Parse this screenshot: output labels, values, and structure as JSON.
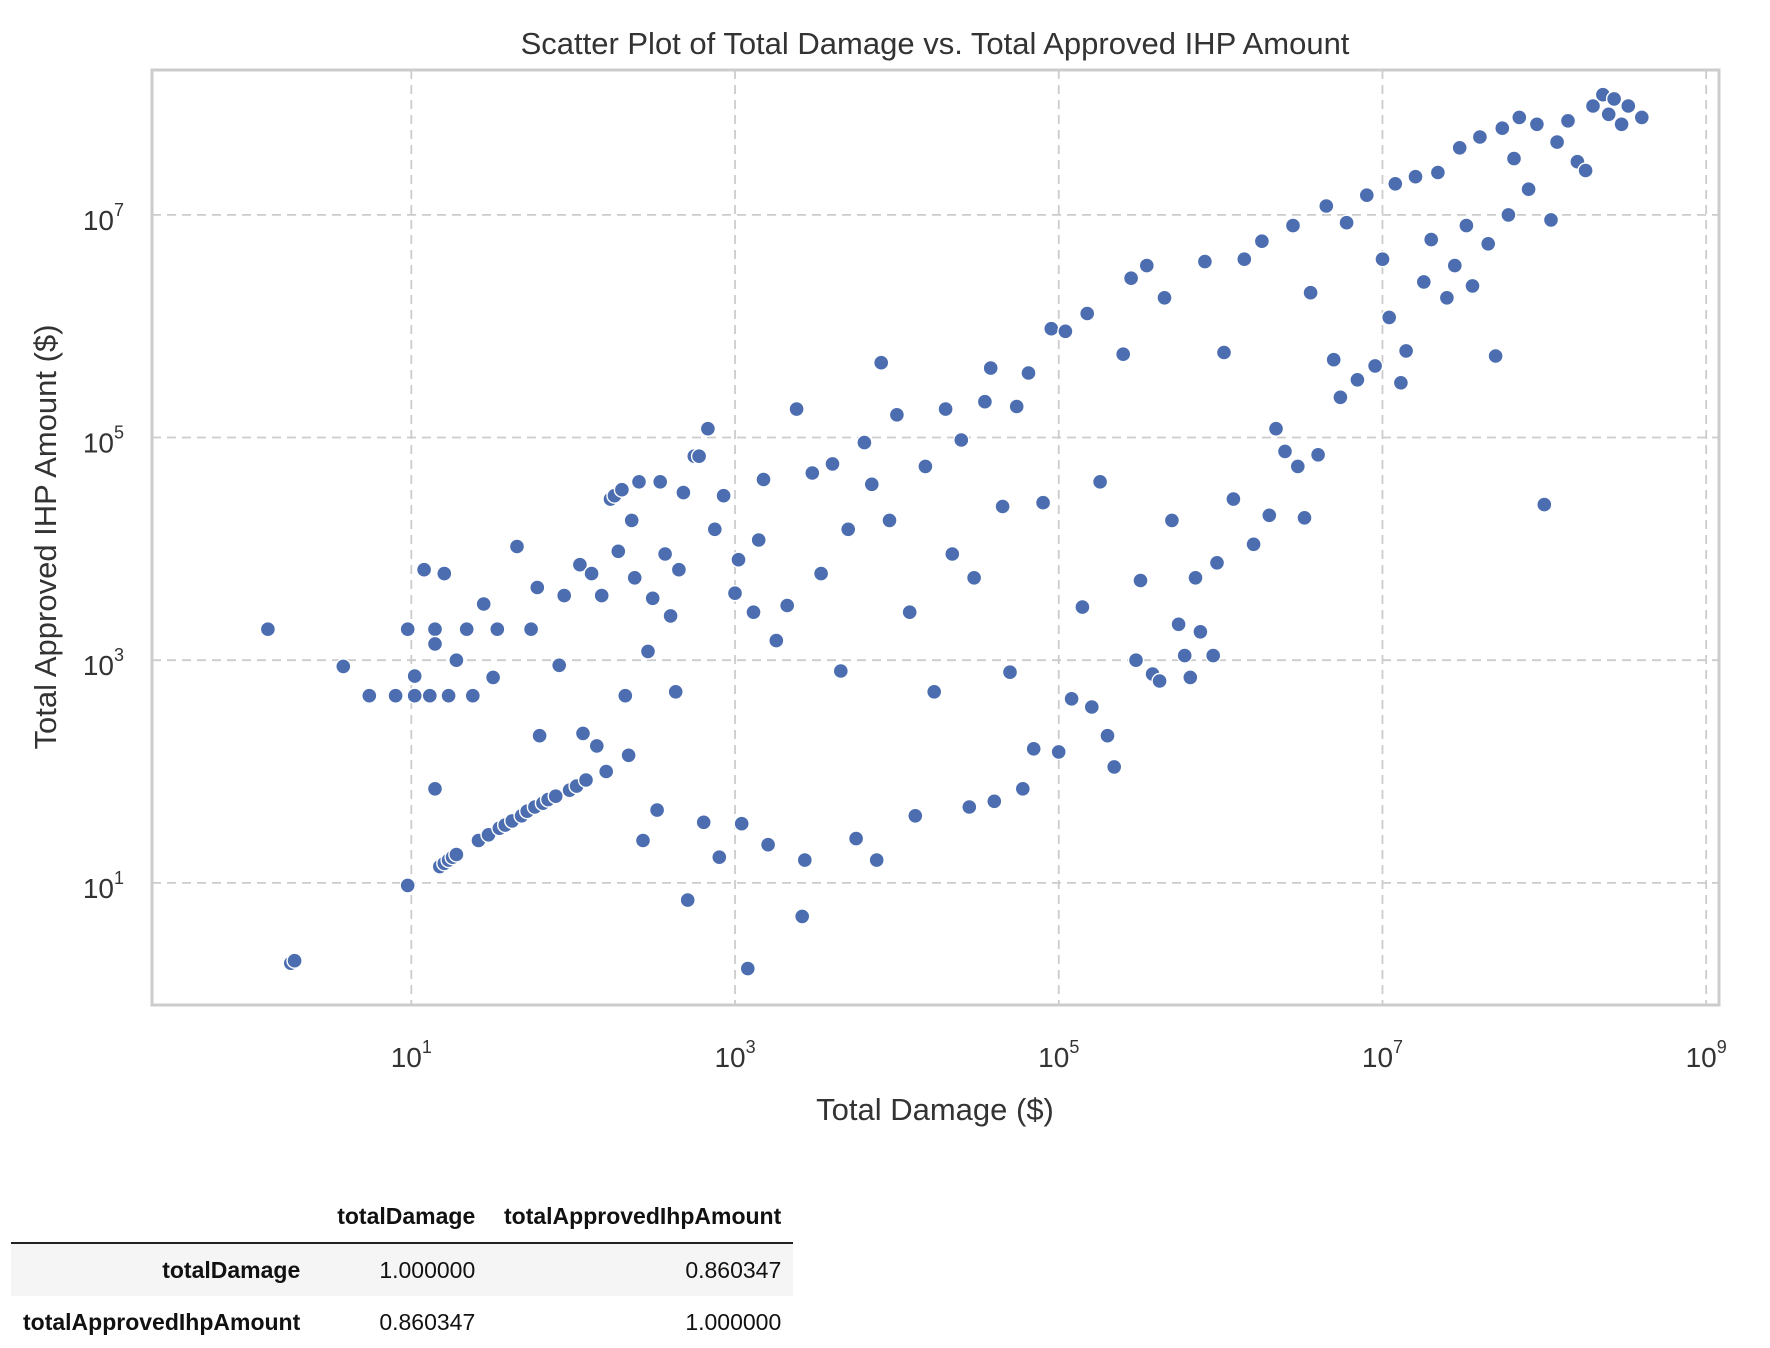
{
  "chart_data": {
    "type": "scatter",
    "title": "Scatter Plot of Total Damage vs. Total Approved IHP Amount",
    "xlabel": "Total Damage ($)",
    "ylabel": "Total Approved IHP Amount ($)",
    "xscale": "log",
    "yscale": "log",
    "xlim": [
      0.25,
      1200000000
    ],
    "ylim": [
      0.8,
      200000000
    ],
    "grid": true,
    "legend": "none",
    "point_color": "#4c6eb0",
    "point_edge_color": "#ffffff",
    "x_ticks": [
      {
        "base": "10",
        "exp": "1",
        "value": 10
      },
      {
        "base": "10",
        "exp": "3",
        "value": 1000
      },
      {
        "base": "10",
        "exp": "5",
        "value": 100000
      },
      {
        "base": "10",
        "exp": "7",
        "value": 10000000
      },
      {
        "base": "10",
        "exp": "9",
        "value": 1000000000
      }
    ],
    "y_ticks": [
      {
        "base": "10",
        "exp": "1",
        "value": 10
      },
      {
        "base": "10",
        "exp": "3",
        "value": 1000
      },
      {
        "base": "10",
        "exp": "5",
        "value": 100000
      },
      {
        "base": "10",
        "exp": "7",
        "value": 10000000
      }
    ],
    "points": [
      [
        1.3,
        1900
      ],
      [
        1.8,
        1.9
      ],
      [
        1.9,
        2.0
      ],
      [
        3.8,
        880
      ],
      [
        5.5,
        480
      ],
      [
        8.0,
        480
      ],
      [
        9.5,
        9.5
      ],
      [
        9.5,
        1900
      ],
      [
        10.5,
        720
      ],
      [
        10.5,
        480
      ],
      [
        12,
        6500
      ],
      [
        13,
        480
      ],
      [
        14,
        70
      ],
      [
        14,
        1900
      ],
      [
        14,
        1400
      ],
      [
        15,
        14
      ],
      [
        16,
        15
      ],
      [
        17,
        16
      ],
      [
        18,
        17
      ],
      [
        19,
        18
      ],
      [
        16,
        6000
      ],
      [
        17,
        480
      ],
      [
        19,
        1000
      ],
      [
        22,
        1900
      ],
      [
        24,
        480
      ],
      [
        26,
        24
      ],
      [
        28,
        3200
      ],
      [
        30,
        27
      ],
      [
        32,
        700
      ],
      [
        34,
        1900
      ],
      [
        35,
        31
      ],
      [
        38,
        33
      ],
      [
        42,
        36
      ],
      [
        45,
        10500
      ],
      [
        48,
        40
      ],
      [
        52,
        44
      ],
      [
        55,
        1900
      ],
      [
        58,
        48
      ],
      [
        60,
        4500
      ],
      [
        62,
        210
      ],
      [
        65,
        52
      ],
      [
        70,
        56
      ],
      [
        78,
        60
      ],
      [
        82,
        900
      ],
      [
        88,
        3800
      ],
      [
        95,
        68
      ],
      [
        105,
        74
      ],
      [
        110,
        7200
      ],
      [
        115,
        220
      ],
      [
        120,
        84
      ],
      [
        130,
        6000
      ],
      [
        140,
        170
      ],
      [
        150,
        3800
      ],
      [
        160,
        100
      ],
      [
        170,
        28000
      ],
      [
        180,
        30000
      ],
      [
        190,
        9500
      ],
      [
        200,
        34000
      ],
      [
        210,
        480
      ],
      [
        220,
        140
      ],
      [
        230,
        18000
      ],
      [
        240,
        5500
      ],
      [
        255,
        40000
      ],
      [
        270,
        24
      ],
      [
        290,
        1200
      ],
      [
        310,
        3600
      ],
      [
        330,
        45
      ],
      [
        345,
        40000
      ],
      [
        370,
        9000
      ],
      [
        400,
        2500
      ],
      [
        430,
        520
      ],
      [
        450,
        6500
      ],
      [
        480,
        32000
      ],
      [
        510,
        7
      ],
      [
        560,
        68000
      ],
      [
        600,
        68000
      ],
      [
        640,
        35
      ],
      [
        680,
        120000
      ],
      [
        750,
        15000
      ],
      [
        800,
        17
      ],
      [
        850,
        30000
      ],
      [
        1000,
        4000
      ],
      [
        1050,
        8000
      ],
      [
        1100,
        34
      ],
      [
        1200,
        1.7
      ],
      [
        1300,
        2700
      ],
      [
        1400,
        12000
      ],
      [
        1500,
        42000
      ],
      [
        1600,
        22
      ],
      [
        1800,
        1500
      ],
      [
        2100,
        3100
      ],
      [
        2400,
        180000
      ],
      [
        2600,
        5
      ],
      [
        2700,
        16
      ],
      [
        3000,
        48000
      ],
      [
        3400,
        6000
      ],
      [
        4000,
        58000
      ],
      [
        4500,
        800
      ],
      [
        5000,
        15000
      ],
      [
        5600,
        25
      ],
      [
        6300,
        90000
      ],
      [
        7000,
        38000
      ],
      [
        7500,
        16
      ],
      [
        8000,
        470000
      ],
      [
        9000,
        18000
      ],
      [
        10000,
        160000
      ],
      [
        12000,
        2700
      ],
      [
        13000,
        40
      ],
      [
        15000,
        55000
      ],
      [
        17000,
        520
      ],
      [
        20000,
        180000
      ],
      [
        22000,
        9000
      ],
      [
        25000,
        95000
      ],
      [
        28000,
        48
      ],
      [
        30000,
        5500
      ],
      [
        35000,
        210000
      ],
      [
        38000,
        420000
      ],
      [
        40000,
        54
      ],
      [
        45000,
        24000
      ],
      [
        50000,
        780
      ],
      [
        55000,
        190000
      ],
      [
        60000,
        70
      ],
      [
        65000,
        380000
      ],
      [
        70000,
        160
      ],
      [
        80000,
        26000
      ],
      [
        90000,
        950000
      ],
      [
        100000,
        150
      ],
      [
        110000,
        900000
      ],
      [
        120000,
        450
      ],
      [
        140000,
        3000
      ],
      [
        150000,
        1300000
      ],
      [
        160000,
        380
      ],
      [
        180000,
        40000
      ],
      [
        200000,
        210
      ],
      [
        220000,
        110
      ],
      [
        250000,
        560000
      ],
      [
        280000,
        2700000
      ],
      [
        300000,
        1000
      ],
      [
        320000,
        5200
      ],
      [
        350000,
        3500000
      ],
      [
        380000,
        750
      ],
      [
        420000,
        650
      ],
      [
        450000,
        1800000
      ],
      [
        500000,
        18000
      ],
      [
        550000,
        2100
      ],
      [
        600000,
        1100
      ],
      [
        650000,
        700
      ],
      [
        700000,
        5500
      ],
      [
        750000,
        1800
      ],
      [
        800000,
        3800000
      ],
      [
        900000,
        1100
      ],
      [
        950000,
        7500
      ],
      [
        1050000,
        580000
      ],
      [
        1200000,
        28000
      ],
      [
        1400000,
        4000000
      ],
      [
        1600000,
        11000
      ],
      [
        1800000,
        5800000
      ],
      [
        2000000,
        20000
      ],
      [
        2200000,
        120000
      ],
      [
        2500000,
        75000
      ],
      [
        2800000,
        8000000
      ],
      [
        3000000,
        55000
      ],
      [
        3300000,
        19000
      ],
      [
        3600000,
        2000000
      ],
      [
        4000000,
        70000
      ],
      [
        4500000,
        12000000
      ],
      [
        5000000,
        500000
      ],
      [
        5500000,
        230000
      ],
      [
        6000000,
        8500000
      ],
      [
        7000000,
        330000
      ],
      [
        8000000,
        15000000
      ],
      [
        9000000,
        440000
      ],
      [
        10000000,
        4000000
      ],
      [
        11000000,
        1200000
      ],
      [
        12000000,
        19000000
      ],
      [
        13000000,
        310000
      ],
      [
        14000000,
        600000
      ],
      [
        16000000,
        22000000
      ],
      [
        18000000,
        2500000
      ],
      [
        20000000,
        6000000
      ],
      [
        22000000,
        24000000
      ],
      [
        25000000,
        1800000
      ],
      [
        28000000,
        3500000
      ],
      [
        30000000,
        40000000
      ],
      [
        33000000,
        8000000
      ],
      [
        36000000,
        2300000
      ],
      [
        40000000,
        50000000
      ],
      [
        45000000,
        5500000
      ],
      [
        50000000,
        540000
      ],
      [
        55000000,
        60000000
      ],
      [
        60000000,
        10000000
      ],
      [
        65000000,
        32000000
      ],
      [
        70000000,
        75000000
      ],
      [
        80000000,
        17000000
      ],
      [
        90000000,
        65000000
      ],
      [
        100000000,
        25000
      ],
      [
        110000000,
        9000000
      ],
      [
        120000000,
        45000000
      ],
      [
        140000000,
        70000000
      ],
      [
        160000000,
        30000000
      ],
      [
        180000000,
        25000000
      ],
      [
        200000000,
        95000000
      ],
      [
        230000000,
        120000000
      ],
      [
        250000000,
        80000000
      ],
      [
        270000000,
        110000000
      ],
      [
        300000000,
        65000000
      ],
      [
        330000000,
        95000000
      ],
      [
        400000000,
        75000000
      ]
    ],
    "table": {
      "columns": [
        "totalDamage",
        "totalApprovedIhpAmount"
      ],
      "rows": [
        {
          "label": "totalDamage",
          "values": [
            "1.000000",
            "0.860347"
          ]
        },
        {
          "label": "totalApprovedIhpAmount",
          "values": [
            "0.860347",
            "1.000000"
          ]
        }
      ]
    }
  }
}
